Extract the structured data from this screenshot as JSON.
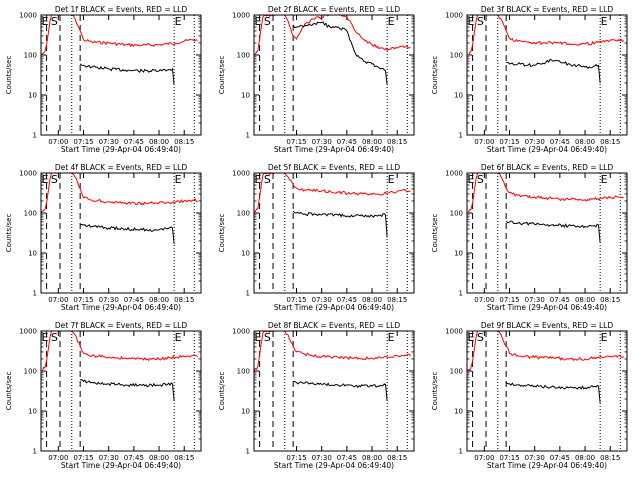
{
  "figure": {
    "start_time_label": "Start Time (29-Apr-04 06:49:40)",
    "ylabel": "Counts/sec",
    "series_colors": {
      "events": "#000000",
      "lld": "#ff0000"
    },
    "time_axis": {
      "unit": "minutes",
      "xlim": [
        "06:49:40",
        "08:25"
      ],
      "scale": "linear"
    },
    "y_axis": {
      "scale": "log",
      "ylim": [
        1,
        1000
      ],
      "tick_labels": [
        "1",
        "10",
        "100",
        "1000"
      ]
    },
    "markers": {
      "S": "07:00",
      "E": "08:09",
      "dashed_lines": [
        "06:53",
        "07:01",
        "07:13"
      ],
      "dotted_lines": [
        "07:08",
        "08:09",
        "08:21"
      ]
    }
  },
  "chart_data": [
    {
      "type": "line",
      "title": "Det 1f BLACK = Events, RED = LLD",
      "xtick_labels": [
        "07:00",
        "07:15",
        "07:30",
        "07:45",
        "08:00",
        "08:15"
      ],
      "series": [
        {
          "key": "lld",
          "color": "#ff0000",
          "x": [
            "06:49:40",
            "06:52",
            "06:53",
            "06:54",
            "06:55",
            "06:56",
            "06:58",
            "07:00",
            "07:02",
            "07:04",
            "07:05",
            "07:06",
            "07:07",
            "07:08",
            "07:10",
            "07:13",
            "07:15",
            "07:20",
            "07:30",
            "07:40",
            "07:50",
            "08:00",
            "08:10",
            "08:15",
            "08:20",
            "08:23"
          ],
          "y": [
            100,
            120,
            180,
            350,
            700,
            1000,
            1000,
            1000,
            1000,
            1000,
            1000,
            1000,
            1000,
            1000,
            800,
            400,
            240,
            210,
            200,
            180,
            175,
            180,
            200,
            220,
            240,
            230
          ]
        },
        {
          "key": "events",
          "color": "#000000",
          "x": [
            "07:13",
            "07:15",
            "07:20",
            "07:30",
            "07:40",
            "07:50",
            "08:00",
            "08:05",
            "08:08",
            "08:09"
          ],
          "y": [
            60,
            55,
            50,
            45,
            42,
            40,
            40,
            42,
            45,
            18
          ]
        }
      ]
    },
    {
      "type": "line",
      "title": "Det 2f BLACK = Events, RED = LLD",
      "xtick_labels": [
        "07:15",
        "07:30",
        "07:45",
        "08:00",
        "08:15"
      ],
      "series": [
        {
          "key": "lld",
          "color": "#ff0000",
          "x": [
            "06:49:40",
            "06:52",
            "06:53",
            "06:54",
            "06:55",
            "06:56",
            "06:58",
            "07:00",
            "07:02",
            "07:04",
            "07:05",
            "07:06",
            "07:07",
            "07:08",
            "07:10",
            "07:13",
            "07:15",
            "07:20",
            "07:25",
            "07:30",
            "07:35",
            "07:40",
            "07:45",
            "07:50",
            "07:55",
            "08:00",
            "08:05",
            "08:10",
            "08:15",
            "08:20",
            "08:23"
          ],
          "y": [
            100,
            130,
            250,
            500,
            900,
            1000,
            1000,
            1000,
            1000,
            1000,
            1000,
            1000,
            1000,
            1000,
            700,
            300,
            250,
            600,
            800,
            900,
            1100,
            1000,
            900,
            400,
            250,
            180,
            150,
            140,
            150,
            160,
            150
          ]
        },
        {
          "key": "events",
          "color": "#000000",
          "x": [
            "07:13",
            "07:15",
            "07:20",
            "07:25",
            "07:30",
            "07:35",
            "07:40",
            "07:45",
            "07:50",
            "07:55",
            "08:00",
            "08:05",
            "08:08",
            "08:09"
          ],
          "y": [
            550,
            500,
            550,
            600,
            650,
            500,
            500,
            400,
            110,
            70,
            60,
            45,
            40,
            18
          ]
        }
      ]
    },
    {
      "type": "line",
      "title": "Det 3f BLACK = Events, RED = LLD",
      "xtick_labels": [
        "07:00",
        "07:15",
        "07:30",
        "07:45",
        "08:00",
        "08:15"
      ],
      "series": [
        {
          "key": "lld",
          "color": "#ff0000",
          "x": [
            "06:49:40",
            "06:52",
            "06:53",
            "06:54",
            "06:55",
            "06:56",
            "06:58",
            "07:00",
            "07:02",
            "07:04",
            "07:05",
            "07:06",
            "07:07",
            "07:08",
            "07:10",
            "07:13",
            "07:15",
            "07:20",
            "07:30",
            "07:40",
            "07:50",
            "08:00",
            "08:10",
            "08:15",
            "08:20",
            "08:23"
          ],
          "y": [
            100,
            120,
            180,
            350,
            700,
            1000,
            1000,
            1000,
            1000,
            1000,
            1000,
            1000,
            1000,
            1000,
            800,
            400,
            260,
            220,
            200,
            200,
            190,
            190,
            210,
            230,
            240,
            230
          ]
        },
        {
          "key": "events",
          "color": "#000000",
          "x": [
            "07:13",
            "07:15",
            "07:20",
            "07:30",
            "07:35",
            "07:40",
            "07:50",
            "08:00",
            "08:05",
            "08:08",
            "08:09"
          ],
          "y": [
            65,
            60,
            60,
            55,
            62,
            75,
            60,
            50,
            52,
            55,
            20
          ]
        }
      ]
    },
    {
      "type": "line",
      "title": "Det 4f BLACK = Events, RED = LLD",
      "xtick_labels": [
        "07:00",
        "07:15",
        "07:30",
        "07:45",
        "08:00",
        "08:15"
      ],
      "series": [
        {
          "key": "lld",
          "color": "#ff0000",
          "x": [
            "06:49:40",
            "06:52",
            "06:53",
            "06:54",
            "06:55",
            "06:56",
            "06:58",
            "07:00",
            "07:02",
            "07:04",
            "07:05",
            "07:06",
            "07:07",
            "07:08",
            "07:10",
            "07:13",
            "07:15",
            "07:20",
            "07:30",
            "07:40",
            "07:50",
            "08:00",
            "08:10",
            "08:15",
            "08:20",
            "08:23"
          ],
          "y": [
            100,
            120,
            180,
            350,
            700,
            1000,
            1000,
            1000,
            1000,
            1000,
            1000,
            1000,
            1000,
            1000,
            800,
            400,
            240,
            210,
            190,
            180,
            175,
            180,
            190,
            200,
            210,
            200
          ]
        },
        {
          "key": "events",
          "color": "#000000",
          "x": [
            "07:13",
            "07:15",
            "07:20",
            "07:30",
            "07:40",
            "07:50",
            "08:00",
            "08:05",
            "08:08",
            "08:09"
          ],
          "y": [
            52,
            50,
            46,
            42,
            40,
            38,
            38,
            40,
            42,
            17
          ]
        }
      ]
    },
    {
      "type": "line",
      "title": "Det 5f BLACK = Events, RED = LLD",
      "xtick_labels": [
        "07:15",
        "07:30",
        "07:45",
        "08:00",
        "08:15"
      ],
      "series": [
        {
          "key": "lld",
          "color": "#ff0000",
          "x": [
            "06:49:40",
            "06:52",
            "06:53",
            "06:54",
            "06:55",
            "06:56",
            "06:58",
            "07:00",
            "07:02",
            "07:04",
            "07:05",
            "07:06",
            "07:07",
            "07:08",
            "07:10",
            "07:13",
            "07:15",
            "07:20",
            "07:30",
            "07:40",
            "07:50",
            "08:00",
            "08:10",
            "08:15",
            "08:20",
            "08:23"
          ],
          "y": [
            100,
            130,
            250,
            500,
            900,
            1000,
            1000,
            1000,
            1000,
            1000,
            1000,
            1000,
            1000,
            1000,
            800,
            500,
            420,
            380,
            350,
            330,
            300,
            290,
            320,
            350,
            370,
            350
          ]
        },
        {
          "key": "events",
          "color": "#000000",
          "x": [
            "07:13",
            "07:15",
            "07:20",
            "07:30",
            "07:40",
            "07:50",
            "08:00",
            "08:05",
            "08:08",
            "08:09"
          ],
          "y": [
            110,
            100,
            95,
            90,
            88,
            85,
            85,
            88,
            90,
            25
          ]
        }
      ]
    },
    {
      "type": "line",
      "title": "Det 6f BLACK = Events, RED = LLD",
      "xtick_labels": [
        "07:00",
        "07:15",
        "07:30",
        "07:45",
        "08:00",
        "08:15"
      ],
      "series": [
        {
          "key": "lld",
          "color": "#ff0000",
          "x": [
            "06:49:40",
            "06:52",
            "06:53",
            "06:54",
            "06:55",
            "06:56",
            "06:58",
            "07:00",
            "07:02",
            "07:04",
            "07:05",
            "07:06",
            "07:07",
            "07:08",
            "07:10",
            "07:13",
            "07:15",
            "07:20",
            "07:30",
            "07:40",
            "07:50",
            "08:00",
            "08:10",
            "08:15",
            "08:20",
            "08:23"
          ],
          "y": [
            100,
            120,
            180,
            350,
            700,
            1000,
            1000,
            1000,
            1000,
            1000,
            1000,
            1000,
            1000,
            1000,
            800,
            420,
            320,
            280,
            250,
            230,
            220,
            215,
            230,
            240,
            250,
            240
          ]
        },
        {
          "key": "events",
          "color": "#000000",
          "x": [
            "07:13",
            "07:15",
            "07:20",
            "07:30",
            "07:40",
            "07:50",
            "08:00",
            "08:05",
            "08:08",
            "08:09"
          ],
          "y": [
            62,
            60,
            56,
            52,
            50,
            48,
            46,
            48,
            50,
            18
          ]
        }
      ]
    },
    {
      "type": "line",
      "title": "Det 7f BLACK = Events, RED = LLD",
      "xtick_labels": [
        "07:00",
        "07:15",
        "07:30",
        "07:45",
        "08:00",
        "08:15"
      ],
      "series": [
        {
          "key": "lld",
          "color": "#ff0000",
          "x": [
            "06:49:40",
            "06:52",
            "06:53",
            "06:54",
            "06:55",
            "06:56",
            "06:58",
            "07:00",
            "07:02",
            "07:04",
            "07:05",
            "07:06",
            "07:07",
            "07:08",
            "07:10",
            "07:13",
            "07:15",
            "07:20",
            "07:30",
            "07:40",
            "07:50",
            "08:00",
            "08:10",
            "08:15",
            "08:20",
            "08:23"
          ],
          "y": [
            100,
            120,
            180,
            350,
            700,
            1000,
            1000,
            1000,
            1000,
            1000,
            1000,
            1000,
            1000,
            1000,
            800,
            420,
            280,
            240,
            220,
            210,
            200,
            200,
            220,
            230,
            240,
            230
          ]
        },
        {
          "key": "events",
          "color": "#000000",
          "x": [
            "07:13",
            "07:15",
            "07:20",
            "07:30",
            "07:40",
            "07:50",
            "08:00",
            "08:05",
            "08:08",
            "08:09"
          ],
          "y": [
            60,
            55,
            52,
            48,
            45,
            44,
            44,
            46,
            48,
            18
          ]
        }
      ]
    },
    {
      "type": "line",
      "title": "Det 8f BLACK = Events, RED = LLD",
      "xtick_labels": [
        "07:15",
        "07:30",
        "07:45",
        "08:00",
        "08:15"
      ],
      "series": [
        {
          "key": "lld",
          "color": "#ff0000",
          "x": [
            "06:49:40",
            "06:52",
            "06:53",
            "06:54",
            "06:55",
            "06:56",
            "06:58",
            "07:00",
            "07:02",
            "07:04",
            "07:05",
            "07:06",
            "07:07",
            "07:08",
            "07:10",
            "07:13",
            "07:15",
            "07:20",
            "07:30",
            "07:40",
            "07:50",
            "08:00",
            "08:10",
            "08:15",
            "08:20",
            "08:23"
          ],
          "y": [
            100,
            130,
            250,
            500,
            900,
            1000,
            1000,
            1000,
            1000,
            1000,
            1000,
            1000,
            1000,
            1000,
            800,
            420,
            300,
            260,
            230,
            220,
            210,
            210,
            220,
            240,
            250,
            240
          ]
        },
        {
          "key": "events",
          "color": "#000000",
          "x": [
            "07:13",
            "07:15",
            "07:20",
            "07:30",
            "07:40",
            "07:50",
            "08:00",
            "08:05",
            "08:08",
            "08:09"
          ],
          "y": [
            55,
            52,
            50,
            46,
            44,
            42,
            42,
            44,
            46,
            18
          ]
        }
      ]
    },
    {
      "type": "line",
      "title": "Det 9f BLACK = Events, RED = LLD",
      "xtick_labels": [
        "07:00",
        "07:15",
        "07:30",
        "07:45",
        "08:00",
        "08:15"
      ],
      "series": [
        {
          "key": "lld",
          "color": "#ff0000",
          "x": [
            "06:49:40",
            "06:52",
            "06:53",
            "06:54",
            "06:55",
            "06:56",
            "06:58",
            "07:00",
            "07:02",
            "07:04",
            "07:05",
            "07:06",
            "07:07",
            "07:08",
            "07:10",
            "07:13",
            "07:15",
            "07:20",
            "07:30",
            "07:40",
            "07:50",
            "08:00",
            "08:10",
            "08:15",
            "08:20",
            "08:23"
          ],
          "y": [
            100,
            120,
            180,
            350,
            700,
            1000,
            1000,
            1000,
            1000,
            1000,
            1000,
            1000,
            1000,
            1000,
            800,
            420,
            280,
            240,
            220,
            210,
            200,
            200,
            220,
            230,
            240,
            230
          ]
        },
        {
          "key": "events",
          "color": "#000000",
          "x": [
            "07:13",
            "07:15",
            "07:20",
            "07:30",
            "07:40",
            "07:50",
            "08:00",
            "08:05",
            "08:08",
            "08:09"
          ],
          "y": [
            50,
            48,
            45,
            42,
            40,
            38,
            38,
            40,
            42,
            16
          ]
        }
      ]
    }
  ]
}
